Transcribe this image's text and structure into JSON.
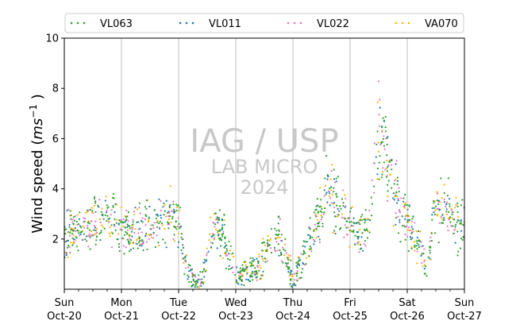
{
  "chart_data": {
    "type": "scatter",
    "title": "",
    "ylabel": "Wind speed",
    "ylabel_unit_base": "ms",
    "ylabel_unit_exp": "−1",
    "ylim": [
      0,
      10
    ],
    "yticks": [
      2,
      4,
      6,
      8,
      10
    ],
    "xlim": [
      "2024-10-20 00:00",
      "2024-10-27 00:00"
    ],
    "xticks": [
      {
        "day": "Sun",
        "date": "Oct-20"
      },
      {
        "day": "Mon",
        "date": "Oct-21"
      },
      {
        "day": "Tue",
        "date": "Oct-22"
      },
      {
        "day": "Wed",
        "date": "Oct-23"
      },
      {
        "day": "Thu",
        "date": "Oct-24"
      },
      {
        "day": "Fri",
        "date": "Oct-25"
      },
      {
        "day": "Sat",
        "date": "Oct-26"
      },
      {
        "day": "Sun",
        "date": "Oct-27"
      }
    ],
    "grid": "vertical day lines",
    "legend_position": "top",
    "watermark": [
      "IAG / USP",
      "LAB MICRO",
      "2024"
    ],
    "series": [
      {
        "name": "VL063",
        "color": "#2ca02c"
      },
      {
        "name": "VL011",
        "color": "#1f77b4"
      },
      {
        "name": "VL022",
        "color": "#e377c2"
      },
      {
        "name": "VA070",
        "color": "#ffb000"
      }
    ],
    "trend_day": [
      0.0,
      0.25,
      0.5,
      0.75,
      1.0,
      1.25,
      1.5,
      1.75,
      2.0,
      2.1,
      2.25,
      2.4,
      2.6,
      2.75,
      3.0,
      3.2,
      3.4,
      3.6,
      3.75,
      4.0,
      4.25,
      4.5,
      4.6,
      4.75,
      5.0,
      5.25,
      5.4,
      5.5,
      5.65,
      5.75,
      6.0,
      6.2,
      6.35,
      6.5,
      6.75,
      7.0
    ],
    "trend_value": [
      2.2,
      2.2,
      2.6,
      2.9,
      2.4,
      2.3,
      2.5,
      3.0,
      2.6,
      1.3,
      0.4,
      0.3,
      2.4,
      2.4,
      0.5,
      0.7,
      0.8,
      2.0,
      2.2,
      0.3,
      1.8,
      3.0,
      4.2,
      3.6,
      2.5,
      2.2,
      3.4,
      6.6,
      5.0,
      3.8,
      2.6,
      1.8,
      0.7,
      3.6,
      3.0,
      2.4
    ]
  }
}
